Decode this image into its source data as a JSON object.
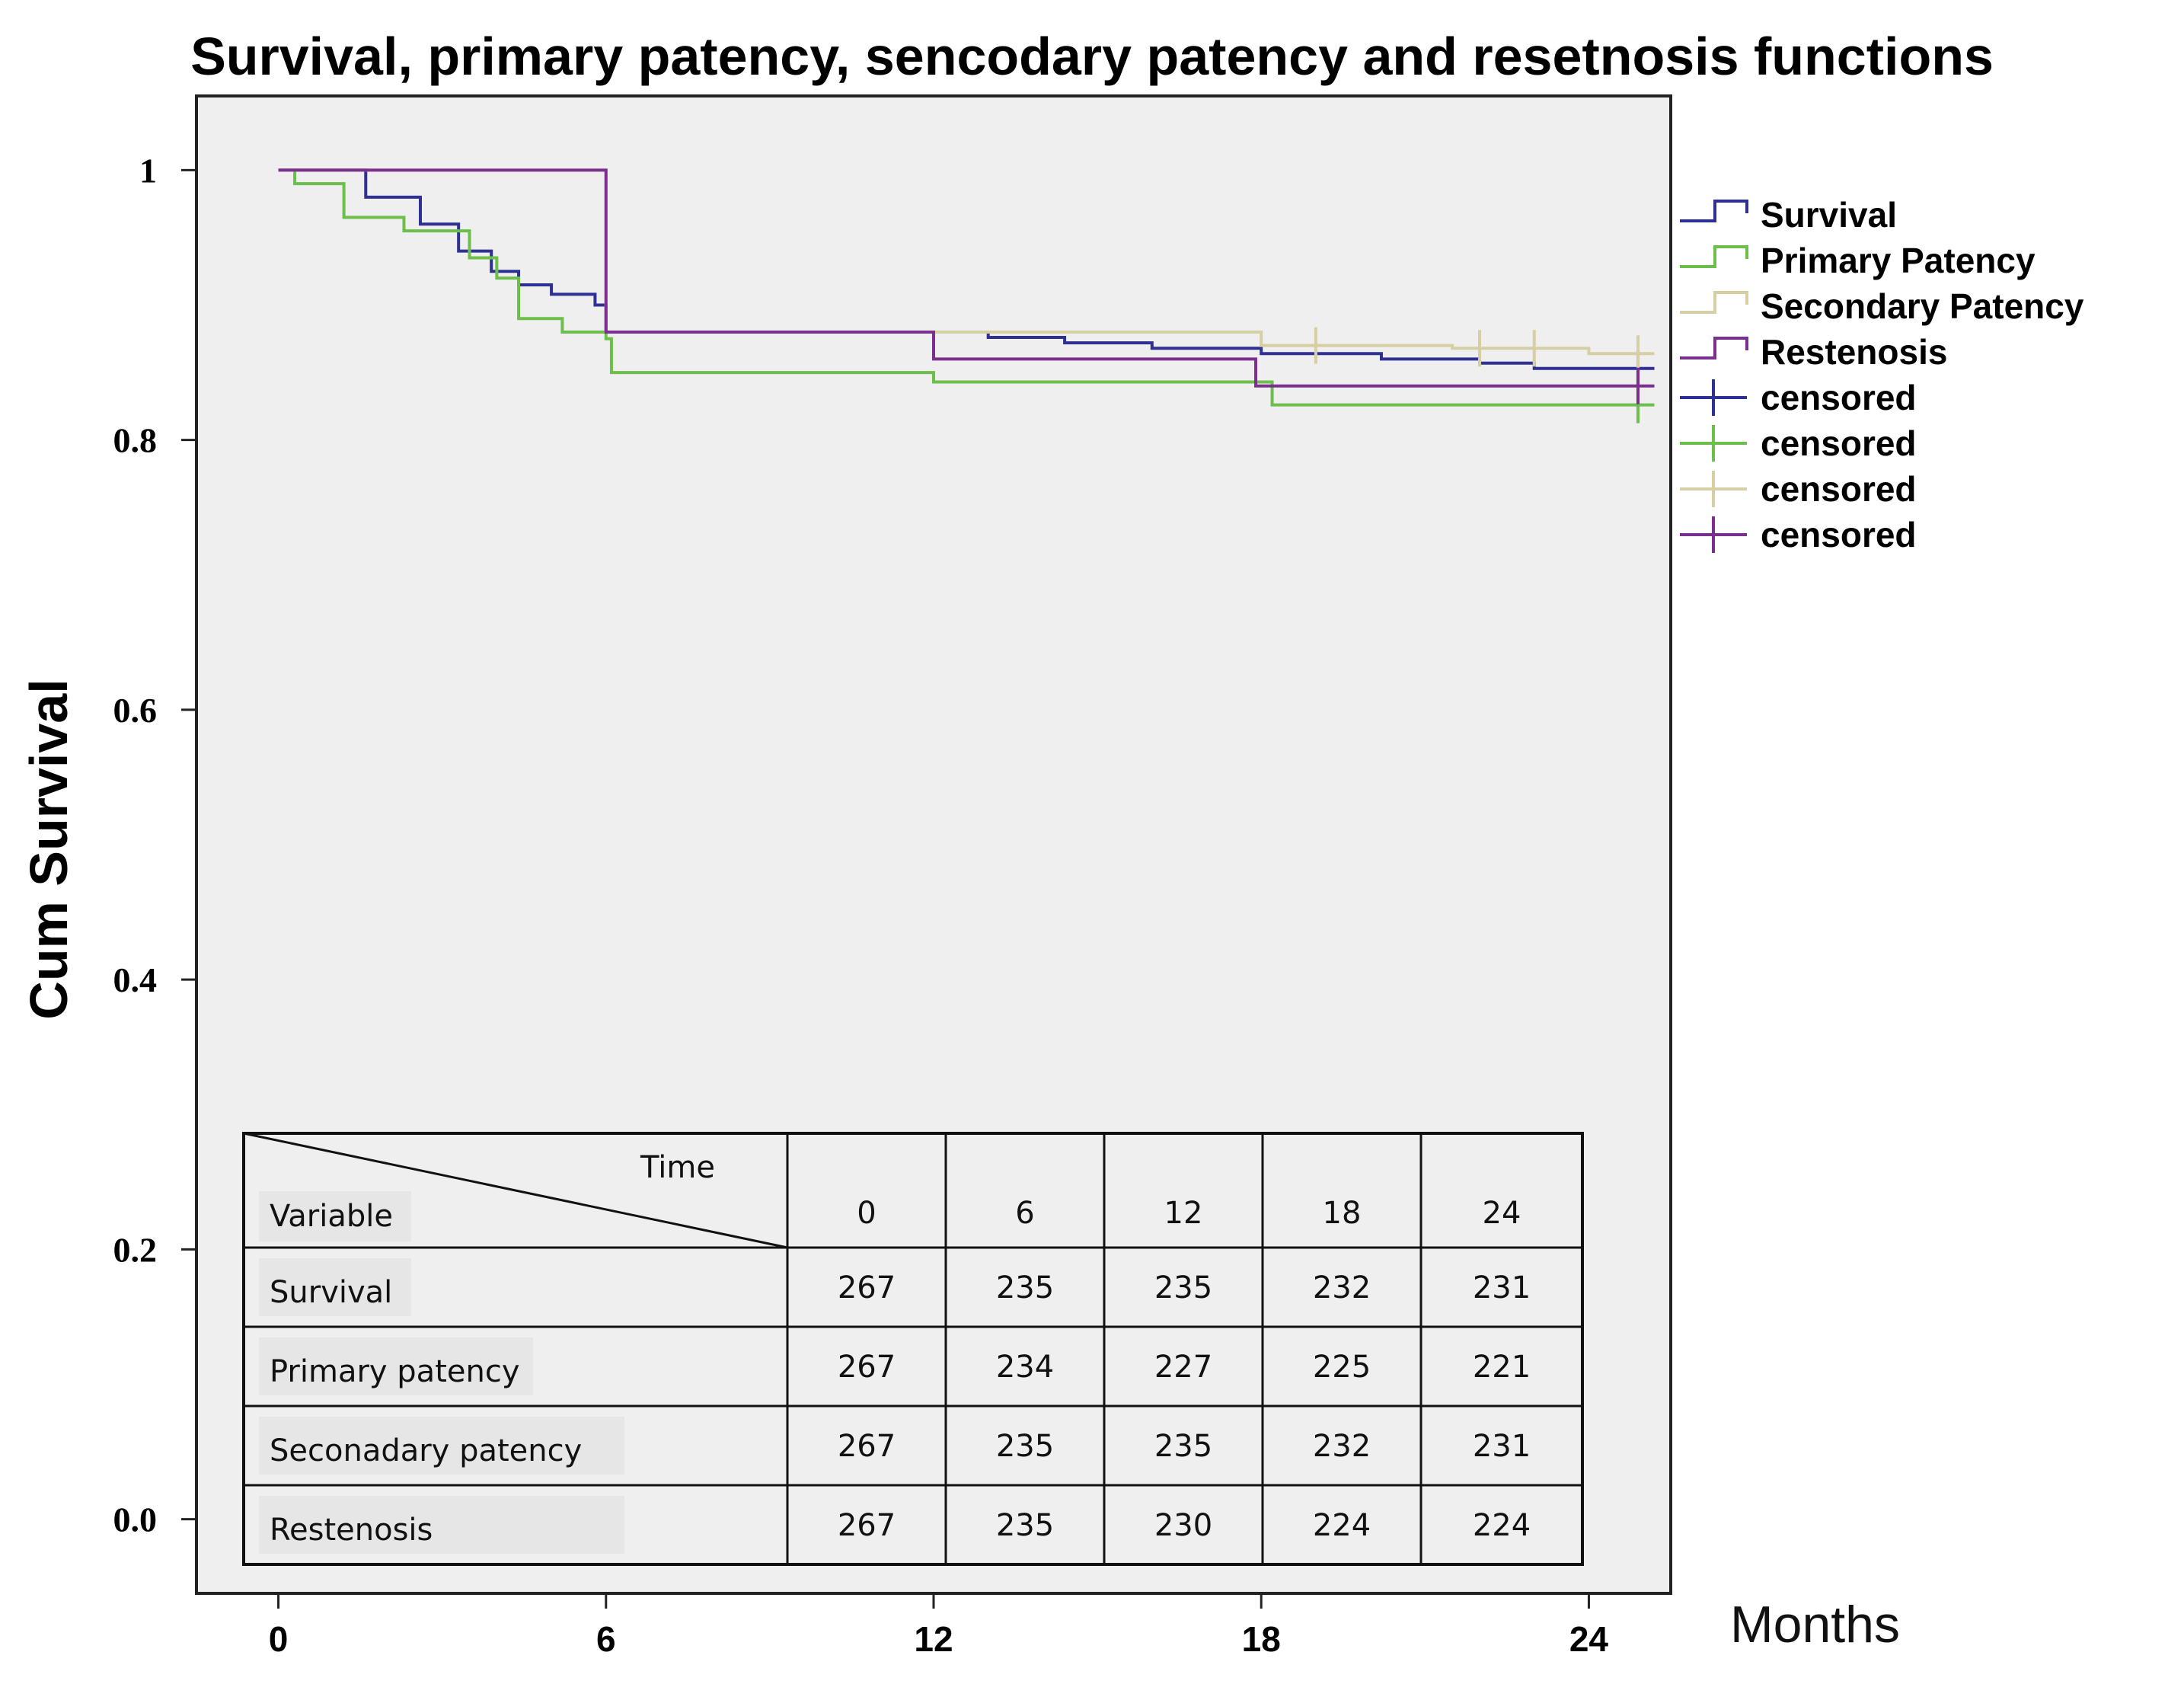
{
  "chart_data": {
    "type": "line",
    "subtype": "kaplan-meier step curves",
    "title": "Survival, primary patency, sencodary patency and resetnosis functions",
    "xlabel": "Months",
    "ylabel": "Cum Survival",
    "xlim": [
      -1.5,
      25.5
    ],
    "ylim": [
      -0.055,
      1.055
    ],
    "x_ticks": [
      0,
      6,
      12,
      18,
      24
    ],
    "x_tick_labels": [
      "0",
      "6",
      "12",
      "18",
      "24"
    ],
    "y_ticks": [
      0,
      0.2,
      0.4,
      0.6,
      0.8,
      1
    ],
    "y_tick_labels": [
      "0.0",
      "0.2",
      "0.4",
      "0.6",
      "0.8",
      "1"
    ],
    "legend_position": "right, outside plot area, top",
    "background": "#efeff0",
    "series": [
      {
        "name": "Survival",
        "color": "#2e3192",
        "x": [
          0,
          1.6,
          2.6,
          3.3,
          3.9,
          4.4,
          5.0,
          5.8,
          6.0,
          13.0,
          14.4,
          16.0,
          18.0,
          20.2,
          22.0,
          23.0,
          25.2
        ],
        "y": [
          1,
          0.98,
          0.96,
          0.94,
          0.925,
          0.915,
          0.908,
          0.9,
          0.88,
          0.876,
          0.872,
          0.868,
          0.864,
          0.86,
          0.857,
          0.853,
          0.853
        ]
      },
      {
        "name": "Primary Patency",
        "color": "#6cbf4a",
        "x": [
          0,
          0.3,
          1.2,
          2.3,
          3.5,
          4.0,
          4.4,
          5.2,
          6.0,
          6.1,
          12.0,
          18.2,
          25.2
        ],
        "y": [
          1,
          0.99,
          0.965,
          0.955,
          0.935,
          0.92,
          0.89,
          0.88,
          0.875,
          0.85,
          0.843,
          0.826,
          0.826
        ]
      },
      {
        "name": "Secondary Patency",
        "color": "#d6cfa3",
        "x": [
          0,
          6.0,
          18.0,
          21.5,
          24.0,
          25.2
        ],
        "y": [
          1,
          0.88,
          0.87,
          0.868,
          0.864,
          0.864
        ]
      },
      {
        "name": "Restenosis",
        "color": "#7b2f8e",
        "x": [
          0,
          6.0,
          12.0,
          17.9,
          25.2
        ],
        "y": [
          1,
          0.88,
          0.86,
          0.84,
          0.84
        ]
      }
    ],
    "censored_marks": [
      {
        "name": "censored",
        "series": "Survival",
        "color": "#2e3192",
        "x": [
          24.9
        ],
        "y": [
          0.853
        ]
      },
      {
        "name": "censored",
        "series": "Primary Patency",
        "color": "#6cbf4a",
        "x": [
          24.9
        ],
        "y": [
          0.826
        ]
      },
      {
        "name": "censored",
        "series": "Secondary Patency",
        "color": "#d6cfa3",
        "x": [
          19.0,
          22.0,
          23.0,
          24.9
        ],
        "y": [
          0.87,
          0.868,
          0.868,
          0.864
        ]
      },
      {
        "name": "censored",
        "series": "Restenosis",
        "color": "#7b2f8e",
        "x": [
          24.9
        ],
        "y": [
          0.84
        ]
      }
    ],
    "legend_entries": [
      "Survival",
      "Primary Patency",
      "Secondary Patency",
      "Restenosis",
      "censored",
      "censored",
      "censored",
      "censored"
    ],
    "risk_table": {
      "corner_top": "Time",
      "corner_bottom": "Variable",
      "times": [
        "0",
        "6",
        "12",
        "18",
        "24"
      ],
      "rows": [
        {
          "label": "Survival",
          "values": [
            "267",
            "235",
            "235",
            "232",
            "231"
          ]
        },
        {
          "label": "Primary patency",
          "values": [
            "267",
            "234",
            "227",
            "225",
            "221"
          ]
        },
        {
          "label": "Seconadary patency",
          "values": [
            "267",
            "235",
            "235",
            "232",
            "231"
          ]
        },
        {
          "label": "Restenosis",
          "values": [
            "267",
            "235",
            "230",
            "224",
            "224"
          ]
        }
      ]
    }
  }
}
